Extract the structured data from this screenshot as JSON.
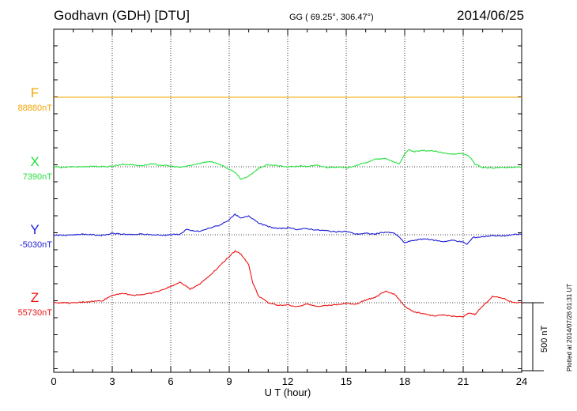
{
  "header": {
    "station": "Godhavn (GDH)  [DTU]",
    "coords": "GG ( 69.25°, 306.47°)",
    "date": "2014/06/25"
  },
  "scale_bar_label": "500 nT",
  "plotted_note": "Plotted at 2014/07/26 01:31  UT",
  "chart_data": {
    "type": "line",
    "xlabel": "U T (hour)",
    "xlim": [
      0,
      24
    ],
    "xticks": [
      0,
      3,
      6,
      9,
      12,
      15,
      18,
      21,
      24
    ],
    "grid": true,
    "scale_bar_nT": 500,
    "series": [
      {
        "name": "F",
        "baseline_label": "88880nT",
        "color": "#f5a500",
        "x": [
          0,
          24
        ],
        "values": [
          0,
          0
        ]
      },
      {
        "name": "X",
        "baseline_label": "7390nT",
        "color": "#22e03a",
        "x": [
          0,
          0.5,
          1,
          1.5,
          2,
          2.5,
          3,
          3.5,
          4,
          4.5,
          5,
          5.5,
          6,
          6.5,
          7,
          7.5,
          8,
          8.3,
          8.7,
          9,
          9.3,
          9.6,
          9.8,
          10,
          10.3,
          10.6,
          11,
          11.5,
          12,
          12.5,
          13,
          13.5,
          14,
          14.5,
          15,
          15.5,
          16,
          16.5,
          17,
          17.3,
          17.7,
          18,
          18.2,
          18.5,
          19,
          19.5,
          20,
          20.5,
          21,
          21.3,
          21.6,
          22,
          22.5,
          23,
          23.5,
          24
        ],
        "values": [
          0,
          -5,
          0,
          0,
          5,
          0,
          5,
          18,
          15,
          8,
          20,
          12,
          5,
          -5,
          10,
          25,
          40,
          30,
          5,
          -20,
          -40,
          -90,
          -85,
          -70,
          -35,
          -5,
          15,
          8,
          -2,
          5,
          3,
          10,
          -5,
          0,
          -10,
          10,
          30,
          55,
          60,
          45,
          20,
          90,
          125,
          110,
          120,
          115,
          100,
          95,
          95,
          80,
          20,
          -5,
          -10,
          -5,
          -5,
          0
        ]
      },
      {
        "name": "Y",
        "baseline_label": "-5030nT",
        "color": "#1a1ad6",
        "x": [
          0,
          0.5,
          1,
          1.5,
          2,
          2.5,
          3,
          3.5,
          4,
          4.5,
          5,
          5.5,
          6,
          6.5,
          6.8,
          7,
          7.5,
          8,
          8.5,
          9,
          9.3,
          9.6,
          10,
          10.3,
          10.6,
          11,
          11.5,
          12,
          12.5,
          13,
          13.5,
          14,
          14.5,
          15,
          15.5,
          16,
          16.5,
          17,
          17.5,
          17.8,
          18,
          18.2,
          18.5,
          19,
          19.5,
          20,
          20.5,
          21,
          21.2,
          21.5,
          22,
          22.5,
          23,
          23.5,
          24
        ],
        "values": [
          0,
          -5,
          0,
          5,
          0,
          -5,
          10,
          5,
          0,
          5,
          0,
          -3,
          0,
          5,
          40,
          30,
          25,
          50,
          70,
          110,
          150,
          120,
          140,
          110,
          80,
          60,
          45,
          50,
          40,
          45,
          35,
          30,
          20,
          25,
          5,
          10,
          5,
          20,
          10,
          -30,
          -60,
          -50,
          -40,
          -30,
          -40,
          -50,
          -40,
          -55,
          -70,
          -20,
          -15,
          -5,
          -10,
          0,
          5
        ]
      },
      {
        "name": "Z",
        "baseline_label": "55730nT",
        "color": "#ee1111",
        "x": [
          0,
          0.5,
          1,
          1.5,
          2,
          2.5,
          3,
          3.5,
          4,
          4.5,
          5,
          5.5,
          6,
          6.5,
          7,
          7.5,
          8,
          8.5,
          9,
          9.3,
          9.6,
          9.8,
          10,
          10.2,
          10.5,
          11,
          11.5,
          12,
          12.5,
          13,
          13.5,
          14,
          14.5,
          15,
          15.5,
          16,
          16.5,
          17,
          17.5,
          18,
          18.5,
          19,
          19.5,
          20,
          20.5,
          21,
          21.3,
          21.6,
          22,
          22.5,
          23,
          23.5,
          24
        ],
        "values": [
          0,
          0,
          -3,
          5,
          10,
          15,
          55,
          70,
          55,
          60,
          70,
          90,
          120,
          150,
          100,
          140,
          200,
          270,
          340,
          380,
          360,
          320,
          280,
          150,
          50,
          0,
          -20,
          -15,
          -30,
          -10,
          -25,
          -20,
          -15,
          -5,
          -10,
          20,
          40,
          85,
          60,
          -25,
          -70,
          -80,
          -100,
          -90,
          -100,
          -105,
          -75,
          -85,
          -25,
          45,
          35,
          5,
          0
        ]
      }
    ]
  }
}
